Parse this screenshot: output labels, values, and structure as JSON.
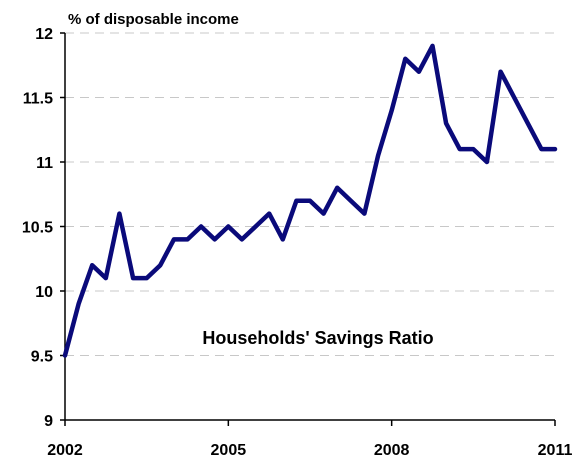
{
  "chart_data": {
    "type": "line",
    "ylabel": "% of disposable income",
    "annotation": "Households' Savings Ratio",
    "ylim": [
      9,
      12
    ],
    "xlim": [
      2002,
      2011
    ],
    "yticks": [
      9,
      9.5,
      10,
      10.5,
      11,
      11.5,
      12
    ],
    "ytick_labels": [
      "9",
      "9.5",
      "10",
      "10.5",
      "11",
      "11.5",
      "12"
    ],
    "xticks": [
      2002,
      2005,
      2008,
      2011
    ],
    "xtick_labels": [
      "2002",
      "2005",
      "2008",
      "2011"
    ],
    "grid": "horizontal dashed",
    "colors": {
      "series": "#0a0a7a",
      "grid": "#c8c8c8"
    },
    "series": [
      {
        "x": [
          2002.0,
          2002.25,
          2002.5,
          2002.75,
          2003.0,
          2003.25,
          2003.5,
          2003.75,
          2004.0,
          2004.25,
          2004.5,
          2004.75,
          2005.0,
          2005.25,
          2005.5,
          2005.75,
          2006.0,
          2006.25,
          2006.5,
          2006.75,
          2007.0,
          2007.25,
          2007.5,
          2007.75,
          2008.0,
          2008.25,
          2008.5,
          2008.75,
          2009.0,
          2009.25,
          2009.5,
          2009.75,
          2010.0,
          2010.25,
          2010.5,
          2010.75,
          2011.0
        ],
        "values": [
          9.5,
          9.9,
          10.2,
          10.1,
          10.6,
          10.1,
          10.1,
          10.2,
          10.4,
          10.4,
          10.5,
          10.4,
          10.5,
          10.4,
          10.5,
          10.6,
          10.4,
          10.7,
          10.7,
          10.6,
          10.8,
          10.7,
          10.6,
          11.05,
          11.4,
          11.8,
          11.7,
          11.9,
          11.3,
          11.1,
          11.1,
          11.0,
          11.7,
          11.5,
          11.3,
          11.1,
          11.1
        ]
      }
    ]
  }
}
